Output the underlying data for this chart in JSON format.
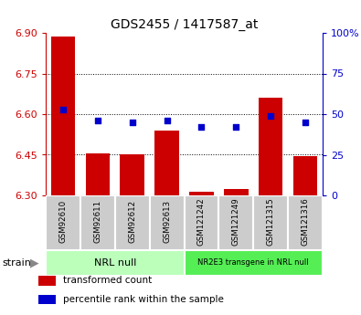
{
  "title": "GDS2455 / 1417587_at",
  "samples": [
    "GSM92610",
    "GSM92611",
    "GSM92612",
    "GSM92613",
    "GSM121242",
    "GSM121249",
    "GSM121315",
    "GSM121316"
  ],
  "transformed_counts": [
    6.885,
    6.455,
    6.452,
    6.538,
    6.312,
    6.322,
    6.66,
    6.445
  ],
  "percentile_ranks": [
    53,
    46,
    45,
    46,
    42,
    42,
    49,
    45
  ],
  "ylim_left": [
    6.3,
    6.9
  ],
  "yticks_left": [
    6.3,
    6.45,
    6.6,
    6.75,
    6.9
  ],
  "ylim_right": [
    0,
    100
  ],
  "yticks_right": [
    0,
    25,
    50,
    75,
    100
  ],
  "group1_label": "NRL null",
  "group2_label": "NR2E3 transgene in NRL null",
  "group1_indices": [
    0,
    1,
    2,
    3
  ],
  "group2_indices": [
    4,
    5,
    6,
    7
  ],
  "bar_color": "#cc0000",
  "dot_color": "#0000cc",
  "group1_bg": "#bbffbb",
  "group2_bg": "#55ee55",
  "sample_bg": "#cccccc",
  "bar_bottom": 6.3,
  "legend_items": [
    {
      "label": "transformed count",
      "color": "#cc0000"
    },
    {
      "label": "percentile rank within the sample",
      "color": "#0000cc"
    }
  ],
  "strain_label": "strain",
  "ylabel_left_color": "#cc0000",
  "ylabel_right_color": "#0000cc",
  "figsize": [
    3.95,
    3.45
  ],
  "dpi": 100
}
